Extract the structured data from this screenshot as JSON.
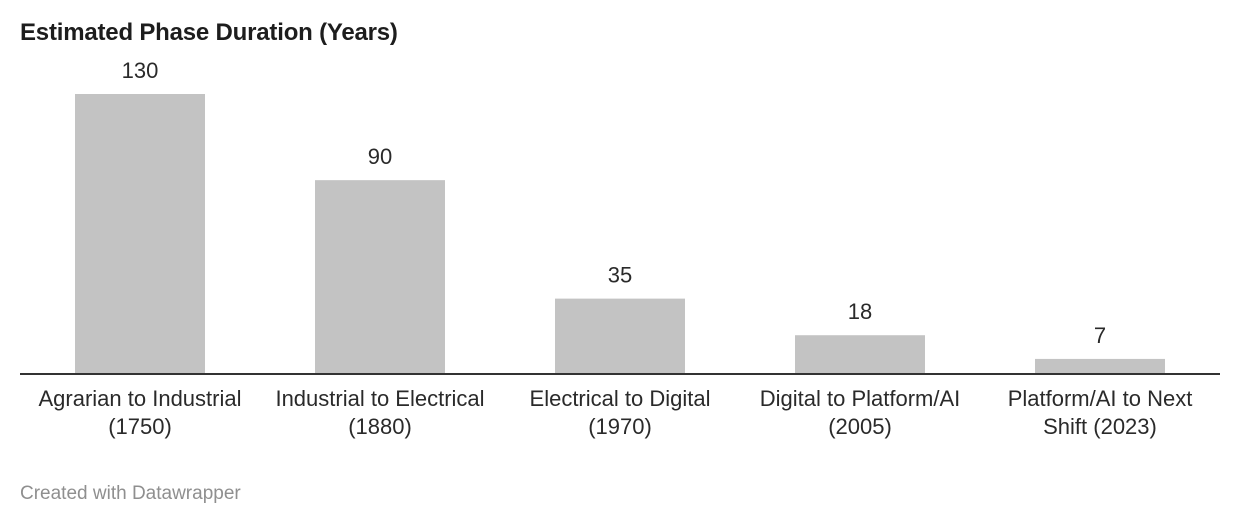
{
  "chart_data": {
    "type": "bar",
    "title": "Estimated Phase Duration (Years)",
    "categories": [
      [
        "Agrarian to Industrial",
        "(1750)"
      ],
      [
        "Industrial to Electrical",
        "(1880)"
      ],
      [
        "Electrical to Digital",
        "(1970)"
      ],
      [
        "Digital to Platform/AI",
        "(2005)"
      ],
      [
        "Platform/AI to Next",
        "Shift (2023)"
      ]
    ],
    "values": [
      130,
      90,
      35,
      18,
      7
    ],
    "value_labels": [
      "130",
      "90",
      "35",
      "18",
      "7"
    ],
    "xlabel": "",
    "ylabel": "",
    "ylim": [
      0,
      130
    ],
    "grid": false,
    "bar_color": "#c3c3c3"
  },
  "footer": {
    "credit": "Created with Datawrapper"
  }
}
